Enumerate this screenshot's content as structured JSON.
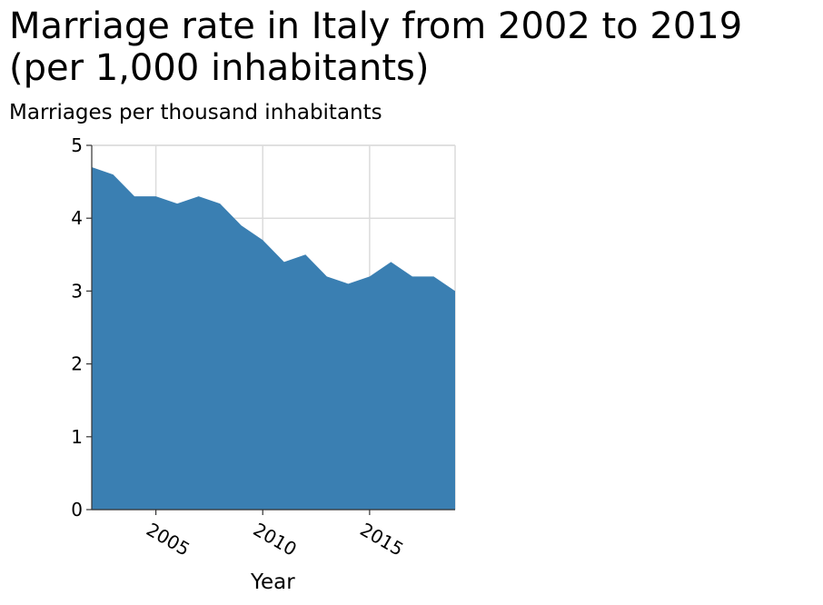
{
  "chart_data": {
    "type": "area",
    "title_line1": "Marriage rate in Italy from 2002 to 2019",
    "title_line2": "(per 1,000 inhabitants)",
    "xlabel": "Year",
    "ylabel": "Marriages per thousand inhabitants",
    "x": [
      2002,
      2003,
      2004,
      2005,
      2006,
      2007,
      2008,
      2009,
      2010,
      2011,
      2012,
      2013,
      2014,
      2015,
      2016,
      2017,
      2018,
      2019
    ],
    "series": [
      {
        "values": [
          4.7,
          4.6,
          4.3,
          4.3,
          4.2,
          4.3,
          4.2,
          3.9,
          3.7,
          3.4,
          3.5,
          3.2,
          3.1,
          3.2,
          3.4,
          3.2,
          3.2,
          3.0
        ],
        "color": "#3a7fb2"
      }
    ],
    "xlim": [
      2002,
      2019
    ],
    "ylim": [
      0,
      5
    ],
    "x_ticks": [
      "2005",
      "2010",
      "2015"
    ],
    "y_ticks": [
      "0",
      "1",
      "2",
      "3",
      "4",
      "5"
    ],
    "grid": true,
    "grid_color": "#dcdcdc",
    "legend": "none"
  }
}
